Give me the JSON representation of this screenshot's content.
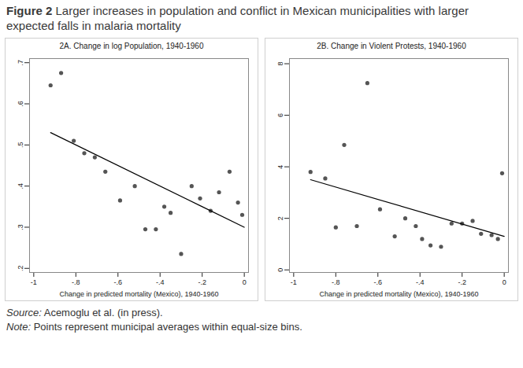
{
  "title_label": "Figure 2",
  "title": "Larger increases in population and conflict in Mexican municipalities with larger expected falls in malaria mortality",
  "source_label": "Source:",
  "source": "Acemoglu et al. (in press).",
  "note_label": "Note:",
  "note": "Points represent municipal averages within equal-size bins.",
  "chart_data": [
    {
      "type": "scatter",
      "title": "2A. Change in log Population, 1940-1960",
      "x_label": "Change in predicted mortality (Mexico), 1940-1960",
      "color": "#555555",
      "x": [
        -0.92,
        -0.87,
        -0.81,
        -0.76,
        -0.71,
        -0.66,
        -0.59,
        -0.52,
        -0.47,
        -0.42,
        -0.38,
        -0.35,
        -0.3,
        -0.25,
        -0.21,
        -0.16,
        -0.12,
        -0.07,
        -0.03,
        -0.01
      ],
      "values": [
        0.645,
        0.675,
        0.51,
        0.48,
        0.47,
        0.435,
        0.365,
        0.4,
        0.295,
        0.295,
        0.35,
        0.335,
        0.235,
        0.4,
        0.37,
        0.34,
        0.385,
        0.435,
        0.36,
        0.33
      ],
      "fit": {
        "color": "#000000",
        "x": [
          -0.92,
          0
        ],
        "values": [
          0.53,
          0.3
        ]
      },
      "xlim": [
        -1.02,
        0.02
      ],
      "ylim": [
        0.19,
        0.71
      ],
      "xticks": [
        {
          "value": -1,
          "label": "-1"
        },
        {
          "value": -0.8,
          "label": "-.8"
        },
        {
          "value": -0.6,
          "label": "-.6"
        },
        {
          "value": -0.4,
          "label": "-.4"
        },
        {
          "value": -0.2,
          "label": "-.2"
        },
        0
      ],
      "yticks": [
        {
          "value": 0.2,
          "label": ".2"
        },
        {
          "value": 0.3,
          "label": ".3"
        },
        {
          "value": 0.4,
          "label": ".4"
        },
        {
          "value": 0.5,
          "label": ".5"
        },
        {
          "value": 0.6,
          "label": ".6"
        },
        {
          "value": 0.7,
          "label": ".7"
        }
      ]
    },
    {
      "type": "scatter",
      "title": "2B. Change in Violent Protests, 1940-1960",
      "x_label": "Change in predicted mortality (Mexico), 1940-1960",
      "color": "#555555",
      "x": [
        -0.92,
        -0.85,
        -0.8,
        -0.76,
        -0.7,
        -0.65,
        -0.59,
        -0.52,
        -0.47,
        -0.42,
        -0.39,
        -0.35,
        -0.3,
        -0.25,
        -0.2,
        -0.15,
        -0.11,
        -0.06,
        -0.03,
        -0.01
      ],
      "values": [
        3.8,
        3.55,
        1.65,
        4.85,
        1.7,
        7.25,
        2.35,
        1.3,
        2.0,
        1.7,
        1.2,
        0.95,
        0.9,
        1.8,
        1.8,
        1.9,
        1.4,
        1.35,
        1.2,
        3.75
      ],
      "fit": {
        "color": "#000000",
        "x": [
          -0.92,
          0
        ],
        "values": [
          3.5,
          1.3
        ]
      },
      "xlim": [
        -1.02,
        0.02
      ],
      "ylim": [
        -0.1,
        8.2
      ],
      "xticks": [
        {
          "value": -1,
          "label": "-1"
        },
        {
          "value": -0.8,
          "label": "-.8"
        },
        {
          "value": -0.6,
          "label": "-.6"
        },
        {
          "value": -0.4,
          "label": "-.4"
        },
        {
          "value": -0.2,
          "label": "-.2"
        },
        0
      ],
      "yticks": [
        0,
        2,
        4,
        6,
        8
      ]
    }
  ]
}
